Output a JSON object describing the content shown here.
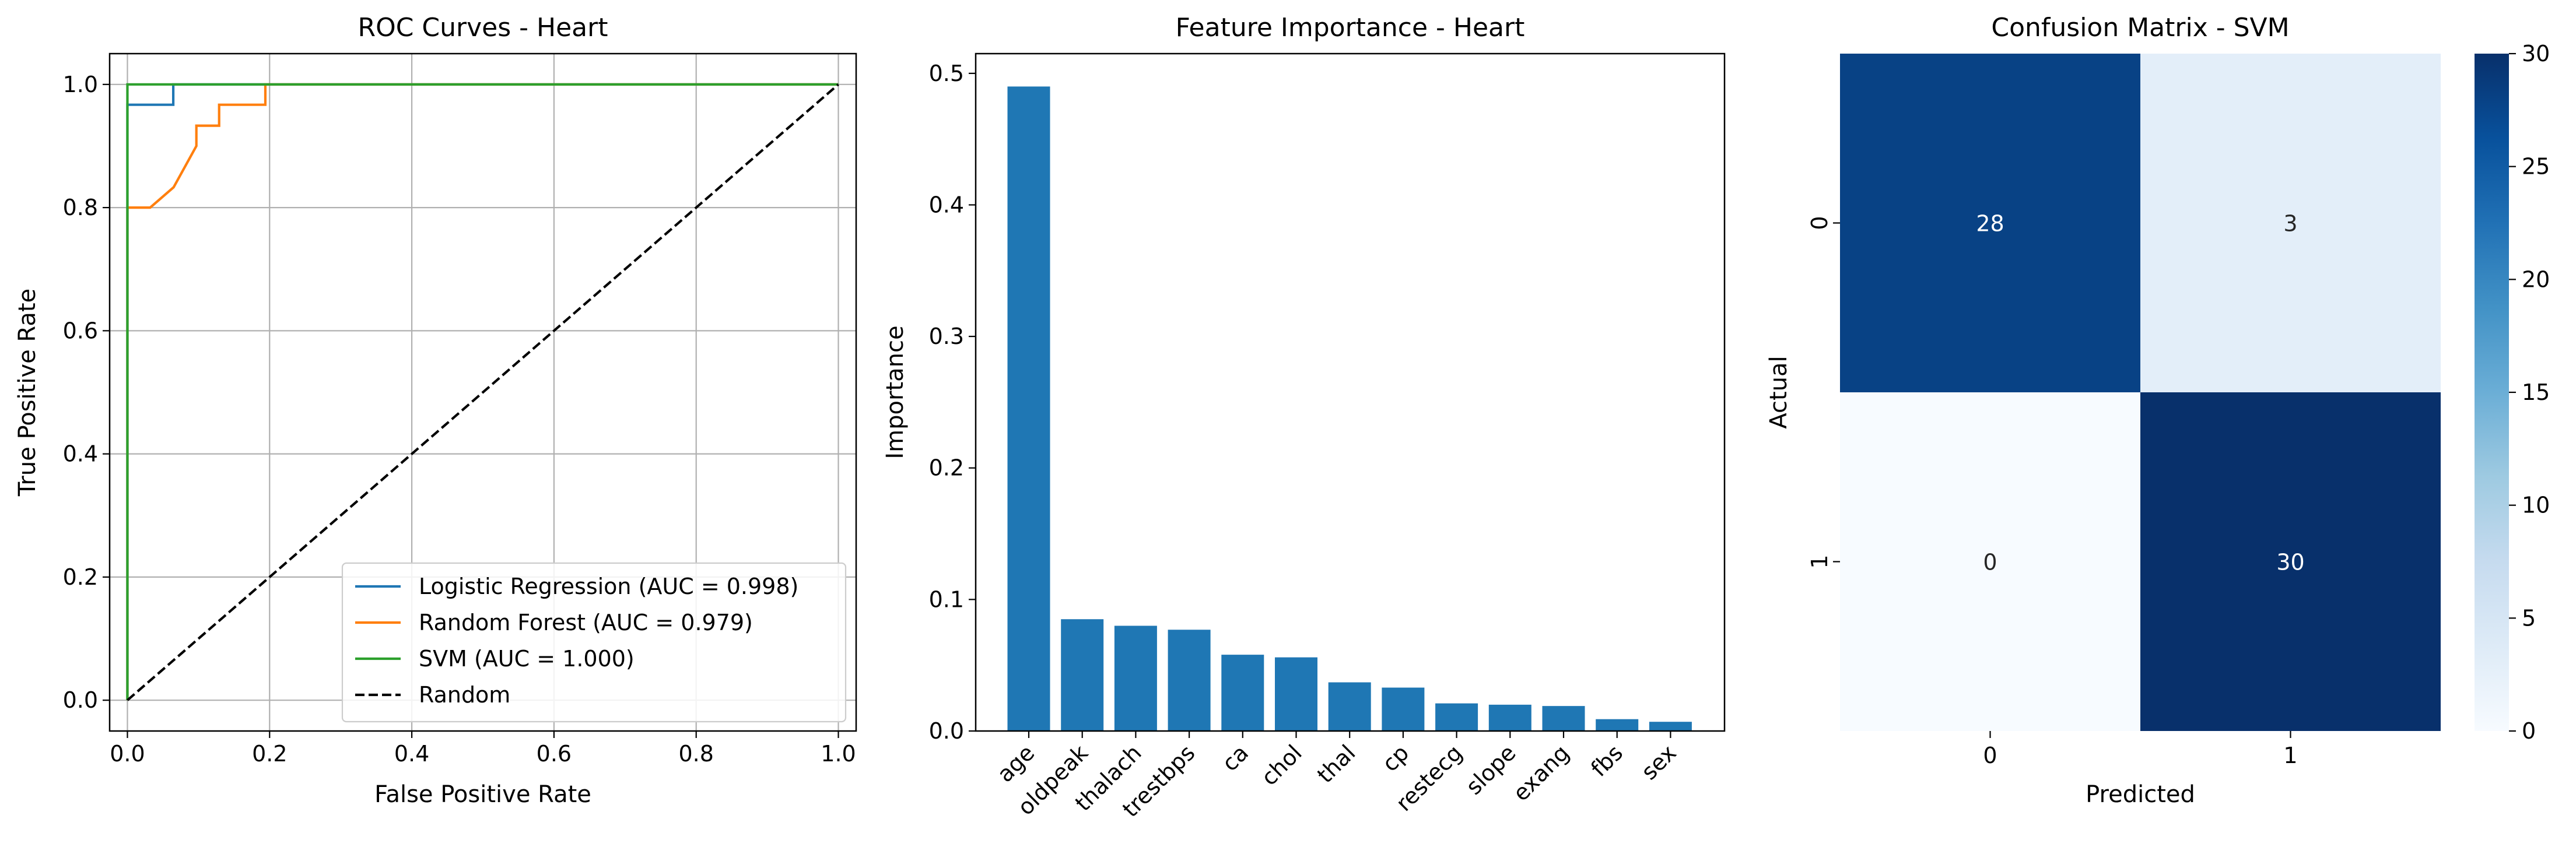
{
  "chart_data": [
    {
      "type": "line",
      "title": "ROC Curves - Heart",
      "xlabel": "False Positive Rate",
      "ylabel": "True Positive Rate",
      "xlim": [
        -0.025,
        1.025
      ],
      "ylim": [
        -0.05,
        1.05
      ],
      "xticks": [
        "0.0",
        "0.2",
        "0.4",
        "0.6",
        "0.8",
        "1.0"
      ],
      "yticks": [
        "0.0",
        "0.2",
        "0.4",
        "0.6",
        "0.8",
        "1.0"
      ],
      "grid": true,
      "legend_position": "lower-right",
      "series": [
        {
          "name": "Logistic Regression (AUC = 0.998)",
          "color": "#1f77b4",
          "style": "solid",
          "x": [
            0,
            0,
            0,
            0.0645,
            0.0645,
            1
          ],
          "y": [
            0,
            0.967,
            0.967,
            0.967,
            1,
            1
          ]
        },
        {
          "name": "Random Forest (AUC = 0.979)",
          "color": "#ff7f0e",
          "style": "solid",
          "x": [
            0,
            0,
            0.032,
            0.065,
            0.097,
            0.097,
            0.129,
            0.129,
            0.194,
            0.194,
            1
          ],
          "y": [
            0,
            0.8,
            0.8,
            0.833,
            0.9,
            0.933,
            0.933,
            0.967,
            0.967,
            1,
            1
          ]
        },
        {
          "name": "SVM (AUC = 1.000)",
          "color": "#2ca02c",
          "style": "solid",
          "x": [
            0,
            0,
            1
          ],
          "y": [
            0,
            1,
            1
          ]
        },
        {
          "name": "Random",
          "color": "#000000",
          "style": "dashed",
          "x": [
            0,
            1
          ],
          "y": [
            0,
            1
          ]
        }
      ]
    },
    {
      "type": "bar",
      "title": "Feature Importance - Heart",
      "xlabel": "",
      "ylabel": "Importance",
      "ylim": [
        0,
        0.515
      ],
      "yticks": [
        "0.0",
        "0.1",
        "0.2",
        "0.3",
        "0.4",
        "0.5"
      ],
      "color": "#1f77b4",
      "categories": [
        "age",
        "oldpeak",
        "thalach",
        "trestbps",
        "ca",
        "chol",
        "thal",
        "cp",
        "restecg",
        "slope",
        "exang",
        "fbs",
        "sex"
      ],
      "values": [
        0.49,
        0.085,
        0.08,
        0.077,
        0.058,
        0.056,
        0.037,
        0.033,
        0.021,
        0.02,
        0.019,
        0.009,
        0.007
      ]
    },
    {
      "type": "heatmap",
      "title": "Confusion Matrix - SVM",
      "xlabel": "Predicted",
      "ylabel": "Actual",
      "x_categories": [
        "0",
        "1"
      ],
      "y_categories": [
        "0",
        "1"
      ],
      "values": [
        [
          28,
          3
        ],
        [
          0,
          30
        ]
      ],
      "colormap": "Blues",
      "colorbar_range": [
        0,
        30
      ],
      "colorbar_ticks": [
        "0",
        "5",
        "10",
        "15",
        "20",
        "25",
        "30"
      ]
    }
  ]
}
